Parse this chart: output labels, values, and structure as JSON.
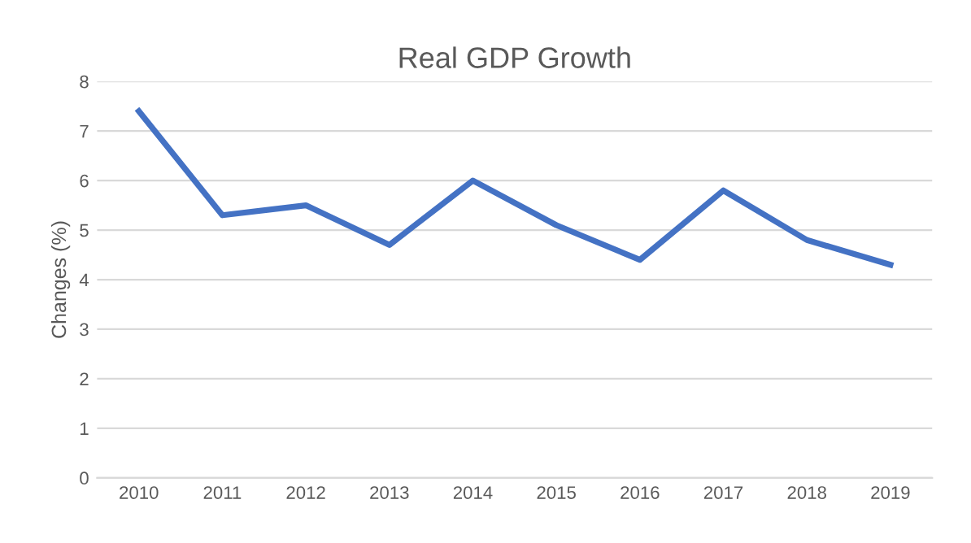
{
  "chart_data": {
    "type": "line",
    "title": "Real GDP Growth",
    "ylabel": "Changes (%)",
    "categories": [
      "2010",
      "2011",
      "2012",
      "2013",
      "2014",
      "2015",
      "2016",
      "2017",
      "2018",
      "2019"
    ],
    "series": [
      {
        "color": "#4472c4",
        "values": [
          7.4,
          5.3,
          5.5,
          4.7,
          6.0,
          5.1,
          4.4,
          5.8,
          4.8,
          4.3
        ]
      }
    ],
    "ylim": [
      0,
      8
    ],
    "yticks": [
      0,
      1,
      2,
      3,
      4,
      5,
      6,
      7,
      8
    ],
    "grid": "y",
    "legend": false,
    "marker": "none",
    "line_style": "solid"
  }
}
